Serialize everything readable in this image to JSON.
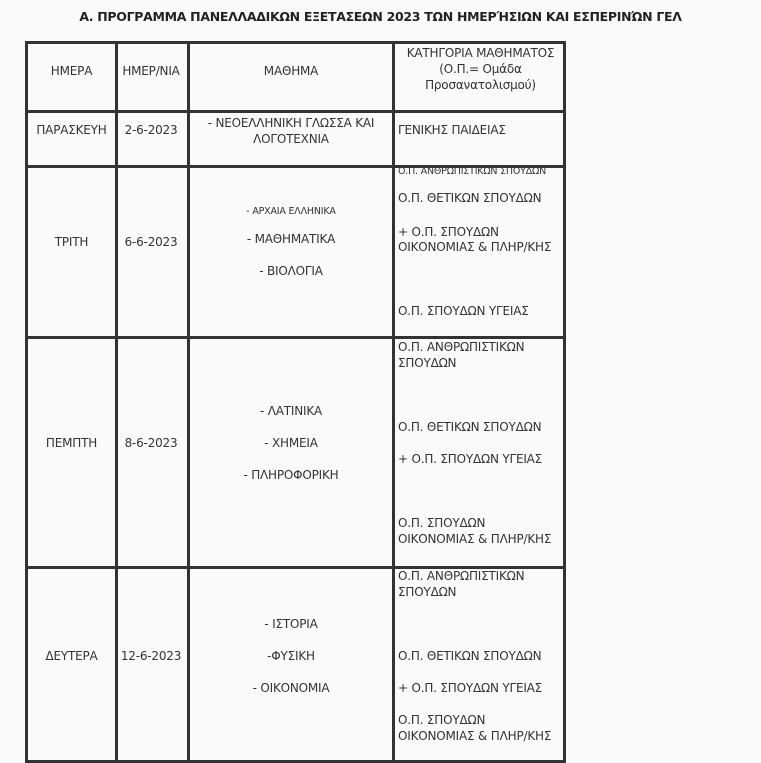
{
  "title": "Α. ΠΡΟΓΡΑΜΜΑ ΠΑΝΕΛΛΑΔΙΚΩΝ ΕΞΕΤΑΣΕΩΝ 2023 ΤΩΝ ΗΜΕΡΉΣΙΩΝ ΚΑΙ ΕΣΠΕΡΙΝΏΝ ΓΕΛ",
  "headers": {
    "day": "ΗΜΕΡΑ",
    "date": "ΗΜΕΡ/ΝΙΑ",
    "subject": "ΜΑΘΗΜΑ",
    "category_l1": "ΚΑΤΗΓΟΡΙΑ ΜΑΘΗΜΑΤΟΣ",
    "category_l2": "(Ο.Π.= Ομάδα",
    "category_l3": "Προσανατολισμού)"
  },
  "rows": [
    {
      "day": "ΠΑΡΑΣΚΕΥΗ",
      "date": "2-6-2023",
      "subjects": [
        "- ΝΕΟΕΛΛΗΝΙΚΗ ΓΛΩΣΣΑ ΚΑΙ",
        "ΛΟΓΟΤΕΧΝΙΑ"
      ],
      "categories": [
        "ΓΕΝΙΚΗΣ ΠΑΙΔΕΙΑΣ"
      ]
    },
    {
      "day": "ΤΡΙΤΗ",
      "date": "6-6-2023",
      "subjects": [
        "- ΑΡΧΑΙΑ ΕΛΛΗΝΙΚΑ",
        "- ΜΑΘΗΜΑΤΙΚΑ",
        "- ΒΙΟΛΟΓΙΑ"
      ],
      "categories": [
        "Ο.Π. ΑΝΘΡΩΠΙΣΤΙΚΩΝ ΣΠΟΥΔΩΝ",
        "Ο.Π. ΘΕΤΙΚΩΝ ΣΠΟΥΔΩΝ",
        "+ Ο.Π. ΣΠΟΥΔΩΝ",
        "ΟΙΚΟΝΟΜΙΑΣ & ΠΛΗΡ/ΚΗΣ",
        "Ο.Π. ΣΠΟΥΔΩΝ ΥΓΕΙΑΣ"
      ]
    },
    {
      "day": "ΠΕΜΠΤΗ",
      "date": "8-6-2023",
      "subjects": [
        "- ΛΑΤΙΝΙΚΑ",
        "- ΧΗΜΕΙΑ",
        "- ΠΛΗΡΟΦΟΡΙΚΗ"
      ],
      "categories": [
        "Ο.Π. ΑΝΘΡΩΠΙΣΤΙΚΩΝ",
        "ΣΠΟΥΔΩΝ",
        "Ο.Π. ΘΕΤΙΚΩΝ ΣΠΟΥΔΩΝ",
        "+ Ο.Π. ΣΠΟΥΔΩΝ ΥΓΕΙΑΣ",
        "Ο.Π. ΣΠΟΥΔΩΝ",
        "ΟΙΚΟΝΟΜΙΑΣ & ΠΛΗΡ/ΚΗΣ"
      ]
    },
    {
      "day": "ΔΕΥΤΕΡΑ",
      "date": "12-6-2023",
      "subjects": [
        "- ΙΣΤΟΡΙΑ",
        "-ΦΥΣΙΚΗ",
        "- ΟΙΚΟΝΟΜΙΑ"
      ],
      "categories": [
        "Ο.Π. ΑΝΘΡΩΠΙΣΤΙΚΩΝ",
        "ΣΠΟΥΔΩΝ",
        "Ο.Π. ΘΕΤΙΚΩΝ ΣΠΟΥΔΩΝ",
        "+ Ο.Π. ΣΠΟΥΔΩΝ ΥΓΕΙΑΣ",
        "Ο.Π. ΣΠΟΥΔΩΝ",
        "ΟΙΚΟΝΟΜΙΑΣ & ΠΛΗΡ/ΚΗΣ"
      ]
    }
  ]
}
